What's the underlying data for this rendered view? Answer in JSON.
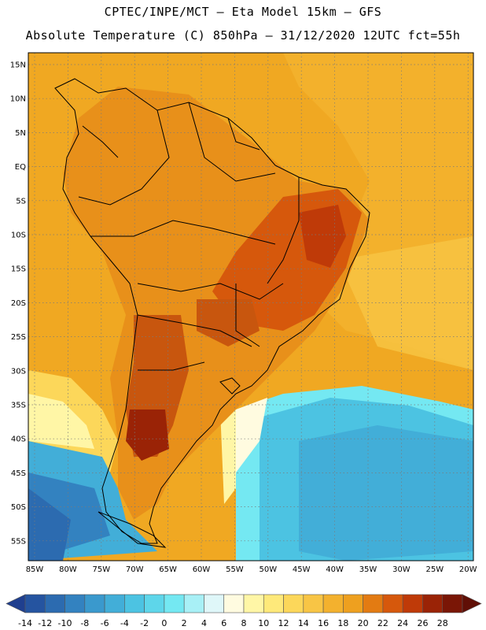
{
  "title_line1": "CPTEC/INPE/MCT –  Eta Model 15km – GFS",
  "title_line2": "Absolute Temperature (C) 850hPa – 31/12/2020 12UTC fct=55h",
  "lat_labels": [
    "15N",
    "10N",
    "5N",
    "EQ",
    "5S",
    "10S",
    "15S",
    "20S",
    "25S",
    "30S",
    "35S",
    "40S",
    "45S",
    "50S",
    "55S"
  ],
  "lon_labels": [
    "85W",
    "80W",
    "75W",
    "70W",
    "65W",
    "60W",
    "55W",
    "50W",
    "45W",
    "40W",
    "35W",
    "30W",
    "25W",
    "20W"
  ],
  "colorbar": {
    "labels": [
      "-14",
      "-12",
      "-10",
      "-8",
      "-6",
      "-4",
      "-2",
      "0",
      "2",
      "4",
      "6",
      "8",
      "10",
      "12",
      "14",
      "16",
      "18",
      "20",
      "22",
      "24",
      "26",
      "28"
    ],
    "colors": [
      "#1f3f8f",
      "#2554a0",
      "#2c6bb0",
      "#3382c0",
      "#3a99cd",
      "#42aed8",
      "#4cc3e2",
      "#5ed6ea",
      "#74e8f2",
      "#a8f0f6",
      "#dff7f9",
      "#fffbe0",
      "#fff6a6",
      "#fee97a",
      "#fcd75a",
      "#f8c545",
      "#f3b12e",
      "#eea01f",
      "#e37b12",
      "#d6580c",
      "#bf3a08",
      "#9a2306",
      "#7a1606",
      "#600f06"
    ]
  },
  "map": {
    "background": "#f0a822",
    "land_color": "#e8901a",
    "hot_color": "#c8560e",
    "hottest_color": "#a03a08",
    "ocean_cold": "#47bde0",
    "ocean_cool": "#8fe0ef",
    "ocean_pale": "#fff3a0"
  }
}
